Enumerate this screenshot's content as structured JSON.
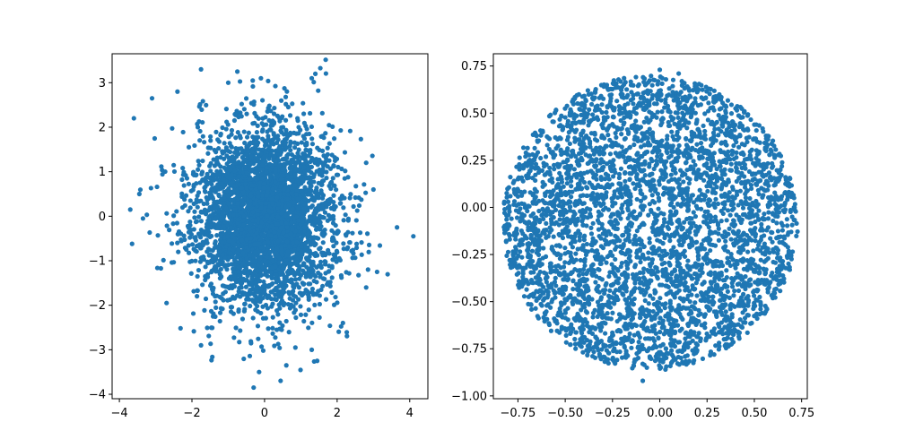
{
  "chart_data": [
    {
      "type": "scatter",
      "title": "",
      "xlabel": "",
      "ylabel": "",
      "xlim": [
        -4.2,
        4.5
      ],
      "ylim": [
        -4.1,
        3.65
      ],
      "xticks": [
        -4,
        -2,
        0,
        2,
        4
      ],
      "yticks": [
        -4,
        -3,
        -2,
        -1,
        0,
        1,
        2,
        3
      ],
      "xtick_labels": [
        "−4",
        "−2",
        "0",
        "2",
        "4"
      ],
      "ytick_labels": [
        "−4",
        "−3",
        "−2",
        "−1",
        "0",
        "1",
        "2",
        "3"
      ],
      "grid": false,
      "color": "#1f77b4",
      "distribution": {
        "shape": "gaussian",
        "center": [
          0,
          0
        ],
        "std": [
          0.98,
          1.0
        ],
        "count": 4000
      },
      "outliers": [
        {
          "x": 4.1,
          "y": -0.45
        },
        {
          "x": 3.65,
          "y": -0.25
        },
        {
          "x": -3.6,
          "y": 2.2
        },
        {
          "x": -3.7,
          "y": 0.15
        },
        {
          "x": -3.65,
          "y": -0.62
        },
        {
          "x": -3.45,
          "y": 0.5
        },
        {
          "x": -3.1,
          "y": 2.65
        },
        {
          "x": -2.4,
          "y": 2.8
        },
        {
          "x": -1.75,
          "y": 3.3
        },
        {
          "x": -1.0,
          "y": 3.0
        },
        {
          "x": -0.75,
          "y": 3.25
        },
        {
          "x": -0.1,
          "y": 3.1
        },
        {
          "x": 1.3,
          "y": 3.1
        },
        {
          "x": 1.4,
          "y": 3.2
        },
        {
          "x": 3.1,
          "y": -1.25
        },
        {
          "x": 2.8,
          "y": -1.6
        },
        {
          "x": -0.3,
          "y": -3.85
        },
        {
          "x": -0.15,
          "y": -3.5
        },
        {
          "x": 0.6,
          "y": -3.35
        },
        {
          "x": -1.75,
          "y": -2.9
        },
        {
          "x": 1.45,
          "y": -3.25
        },
        {
          "x": 1.3,
          "y": -3.0
        },
        {
          "x": 0.85,
          "y": -2.95
        },
        {
          "x": -2.7,
          "y": -1.95
        },
        {
          "x": -3.35,
          "y": -0.05
        },
        {
          "x": 3.0,
          "y": 0.6
        },
        {
          "x": 2.8,
          "y": 1.2
        }
      ]
    },
    {
      "type": "scatter",
      "title": "",
      "xlabel": "",
      "ylabel": "",
      "xlim": [
        -0.88,
        0.78
      ],
      "ylim": [
        -1.015,
        0.815
      ],
      "xticks": [
        -0.75,
        -0.5,
        -0.25,
        0,
        0.25,
        0.5,
        0.75
      ],
      "yticks": [
        -1.0,
        -0.75,
        -0.5,
        -0.25,
        0,
        0.25,
        0.5,
        0.75
      ],
      "xtick_labels": [
        "−0.75",
        "−0.50",
        "−0.25",
        "0.00",
        "0.25",
        "0.50",
        "0.75"
      ],
      "ytick_labels": [
        "−1.00",
        "−0.75",
        "−0.50",
        "−0.25",
        "0.00",
        "0.25",
        "0.50",
        "0.75"
      ],
      "grid": false,
      "color": "#1f77b4",
      "distribution": {
        "shape": "uniform-disk",
        "center": [
          -0.05,
          -0.08
        ],
        "radius": 0.78,
        "count": 4000
      },
      "outliers": [
        {
          "x": -0.82,
          "y": -0.01
        },
        {
          "x": -0.75,
          "y": 0.15
        },
        {
          "x": -0.73,
          "y": 0.02
        },
        {
          "x": -0.09,
          "y": -0.92
        },
        {
          "x": 0.03,
          "y": -0.86
        },
        {
          "x": 0.12,
          "y": -0.82
        },
        {
          "x": 0.0,
          "y": 0.73
        },
        {
          "x": 0.1,
          "y": 0.71
        },
        {
          "x": 0.71,
          "y": 0.05
        },
        {
          "x": 0.7,
          "y": -0.05
        }
      ]
    }
  ]
}
